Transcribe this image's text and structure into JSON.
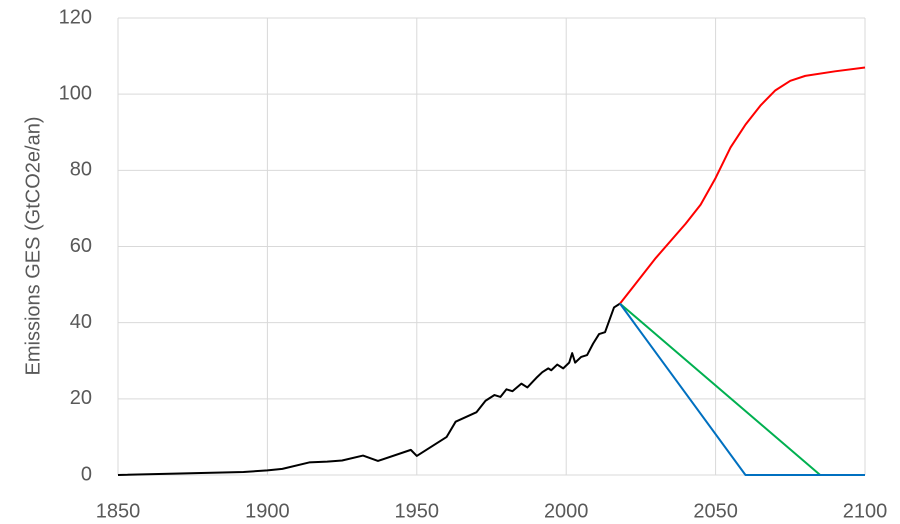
{
  "chart_data": {
    "type": "line",
    "ylabel": "Emissions GES (GtCO2e/an)",
    "xlim": [
      1850,
      2100
    ],
    "xticks": [
      1850,
      1900,
      1950,
      2000,
      2050,
      2100
    ],
    "ylim": [
      0,
      120
    ],
    "yticks": [
      0,
      20,
      40,
      60,
      80,
      100,
      120
    ],
    "grid": true,
    "series": [
      {
        "color": "#000000",
        "x": [
          1850,
          1892,
          1900,
          1905,
          1914,
          1920,
          1925,
          1932,
          1937,
          1948,
          1950,
          1960,
          1963,
          1970,
          1973,
          1976,
          1978,
          1980,
          1982,
          1985,
          1987,
          1990,
          1992,
          1994,
          1995,
          1997,
          1999,
          2001,
          2002,
          2003,
          2005,
          2007,
          2009,
          2011,
          2013,
          2016,
          2018
        ],
        "values": [
          0,
          0.8,
          1.2,
          1.6,
          3.3,
          3.5,
          3.8,
          5.1,
          3.7,
          6.6,
          5,
          10,
          14,
          16.5,
          19.5,
          21,
          20.5,
          22.5,
          22,
          24,
          23,
          25.5,
          27,
          28,
          27.5,
          29,
          28,
          29.5,
          32,
          29.5,
          31,
          31.5,
          34.5,
          37,
          37.5,
          44,
          45
        ]
      },
      {
        "color": "#ff0000",
        "x": [
          2018,
          2030,
          2040,
          2045,
          2050,
          2055,
          2060,
          2065,
          2070,
          2075,
          2080,
          2090,
          2100
        ],
        "values": [
          45,
          57,
          66,
          71,
          78,
          86,
          92,
          97,
          101,
          103.5,
          104.8,
          106,
          107
        ]
      },
      {
        "color": "#00b050",
        "x": [
          2018,
          2085,
          2100
        ],
        "values": [
          45,
          0,
          0
        ]
      },
      {
        "color": "#0070c0",
        "x": [
          2018,
          2060,
          2100
        ],
        "values": [
          45,
          0,
          0
        ]
      }
    ]
  }
}
